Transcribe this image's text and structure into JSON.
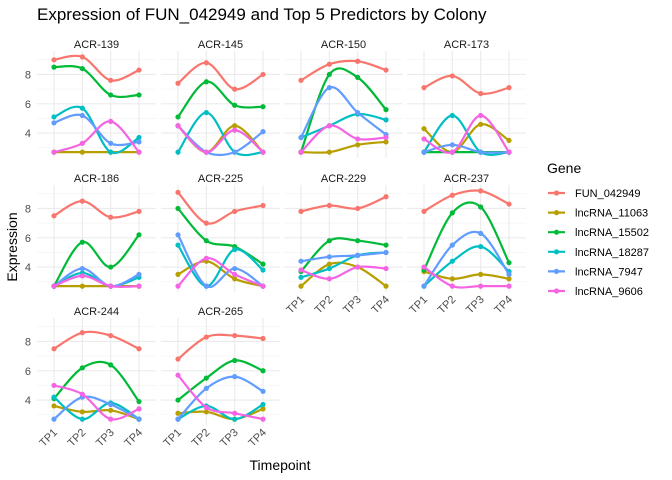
{
  "chart_data": {
    "type": "line",
    "title": "Expression of FUN_042949 and Top 5 Predictors by Colony",
    "xlabel": "Timepoint",
    "ylabel": "Expression",
    "categories": [
      "TP1",
      "TP2",
      "TP3",
      "TP4"
    ],
    "y_ticks": [
      4,
      6,
      8
    ],
    "ylim": [
      2.3,
      9.6
    ],
    "grid": true,
    "legend": {
      "title": "Gene",
      "placement": "right"
    },
    "series_names": [
      "FUN_042949",
      "lncRNA_11063",
      "lncRNA_15502",
      "lncRNA_18287",
      "lncRNA_7947",
      "lncRNA_9606"
    ],
    "colors": {
      "FUN_042949": "#F8766D",
      "lncRNA_11063": "#B79F00",
      "lncRNA_15502": "#00BA38",
      "lncRNA_18287": "#00BFC4",
      "lncRNA_7947": "#619CFF",
      "lncRNA_9606": "#F564E3"
    },
    "panels": [
      {
        "colony": "ACR-139",
        "series": {
          "FUN_042949": [
            9.0,
            9.2,
            7.6,
            8.3
          ],
          "lncRNA_11063": [
            2.7,
            2.7,
            2.7,
            2.7
          ],
          "lncRNA_15502": [
            8.5,
            8.4,
            6.6,
            6.6
          ],
          "lncRNA_18287": [
            5.1,
            5.7,
            2.7,
            3.7
          ],
          "lncRNA_7947": [
            4.7,
            5.2,
            3.3,
            3.4
          ],
          "lncRNA_9606": [
            2.7,
            3.3,
            4.8,
            2.7
          ]
        }
      },
      {
        "colony": "ACR-145",
        "series": {
          "FUN_042949": [
            7.4,
            8.8,
            7.0,
            8.0
          ],
          "lncRNA_11063": [
            4.5,
            2.7,
            4.5,
            2.7
          ],
          "lncRNA_15502": [
            5.1,
            7.5,
            5.9,
            5.8
          ],
          "lncRNA_18287": [
            2.7,
            5.4,
            2.7,
            2.7
          ],
          "lncRNA_7947": [
            4.5,
            2.7,
            2.7,
            4.1
          ],
          "lncRNA_9606": [
            4.5,
            2.7,
            4.2,
            2.7
          ]
        }
      },
      {
        "colony": "ACR-150",
        "series": {
          "FUN_042949": [
            7.6,
            8.7,
            8.9,
            8.3
          ],
          "lncRNA_11063": [
            2.7,
            2.7,
            3.2,
            3.4
          ],
          "lncRNA_15502": [
            2.7,
            8.0,
            7.8,
            5.6
          ],
          "lncRNA_18287": [
            3.7,
            4.5,
            5.3,
            4.9
          ],
          "lncRNA_7947": [
            3.7,
            7.1,
            5.4,
            3.9
          ],
          "lncRNA_9606": [
            2.7,
            4.5,
            3.6,
            3.7
          ]
        }
      },
      {
        "colony": "ACR-173",
        "series": {
          "FUN_042949": [
            7.1,
            7.9,
            6.7,
            7.1
          ],
          "lncRNA_11063": [
            4.3,
            2.7,
            4.6,
            3.5
          ],
          "lncRNA_15502": [
            2.7,
            2.7,
            2.7,
            2.7
          ],
          "lncRNA_18287": [
            2.7,
            5.2,
            2.7,
            2.7
          ],
          "lncRNA_7947": [
            2.7,
            3.2,
            2.7,
            2.7
          ],
          "lncRNA_9606": [
            3.6,
            2.7,
            5.2,
            2.7
          ]
        }
      },
      {
        "colony": "ACR-186",
        "series": {
          "FUN_042949": [
            7.5,
            8.5,
            7.4,
            7.8
          ],
          "lncRNA_11063": [
            2.7,
            2.7,
            2.7,
            2.7
          ],
          "lncRNA_15502": [
            2.7,
            5.7,
            4.0,
            6.2
          ],
          "lncRNA_18287": [
            2.7,
            3.6,
            2.7,
            3.3
          ],
          "lncRNA_7947": [
            2.7,
            3.9,
            2.7,
            3.5
          ],
          "lncRNA_9606": [
            2.7,
            3.4,
            2.7,
            2.7
          ]
        }
      },
      {
        "colony": "ACR-225",
        "series": {
          "FUN_042949": [
            9.1,
            7.0,
            7.8,
            8.2
          ],
          "lncRNA_11063": [
            3.5,
            4.4,
            3.2,
            2.7
          ],
          "lncRNA_15502": [
            8.0,
            5.8,
            5.4,
            4.2
          ],
          "lncRNA_18287": [
            5.5,
            2.7,
            5.2,
            3.8
          ],
          "lncRNA_7947": [
            6.2,
            2.7,
            3.9,
            2.7
          ],
          "lncRNA_9606": [
            2.7,
            4.6,
            3.5,
            2.7
          ]
        }
      },
      {
        "colony": "ACR-229",
        "series": {
          "FUN_042949": [
            7.8,
            8.2,
            8.0,
            8.8
          ],
          "lncRNA_11063": [
            2.7,
            4.2,
            4.0,
            2.7
          ],
          "lncRNA_15502": [
            3.7,
            5.8,
            5.8,
            5.5
          ],
          "lncRNA_18287": [
            3.3,
            3.9,
            4.8,
            5.0
          ],
          "lncRNA_7947": [
            4.4,
            4.7,
            4.8,
            5.0
          ],
          "lncRNA_9606": [
            3.8,
            3.2,
            4.0,
            3.9
          ]
        }
      },
      {
        "colony": "ACR-237",
        "series": {
          "FUN_042949": [
            7.8,
            8.9,
            9.2,
            8.3
          ],
          "lncRNA_11063": [
            3.7,
            3.2,
            3.5,
            3.2
          ],
          "lncRNA_15502": [
            3.8,
            7.7,
            8.1,
            4.3
          ],
          "lncRNA_18287": [
            2.7,
            4.4,
            5.4,
            3.7
          ],
          "lncRNA_7947": [
            2.7,
            5.5,
            6.3,
            3.5
          ],
          "lncRNA_9606": [
            4.0,
            2.7,
            2.7,
            2.7
          ]
        }
      },
      {
        "colony": "ACR-244",
        "series": {
          "FUN_042949": [
            7.5,
            8.6,
            8.4,
            7.5
          ],
          "lncRNA_11063": [
            3.6,
            3.2,
            3.3,
            2.7
          ],
          "lncRNA_15502": [
            4.1,
            6.2,
            6.4,
            3.9
          ],
          "lncRNA_18287": [
            4.2,
            2.7,
            3.8,
            2.7
          ],
          "lncRNA_7947": [
            2.7,
            4.2,
            3.7,
            2.7
          ],
          "lncRNA_9606": [
            5.0,
            4.4,
            2.7,
            3.4
          ]
        }
      },
      {
        "colony": "ACR-265",
        "series": {
          "FUN_042949": [
            6.8,
            8.3,
            8.4,
            8.2
          ],
          "lncRNA_11063": [
            3.1,
            3.2,
            2.7,
            3.4
          ],
          "lncRNA_15502": [
            4.0,
            5.5,
            6.7,
            6.0
          ],
          "lncRNA_18287": [
            2.7,
            3.6,
            2.7,
            3.7
          ],
          "lncRNA_7947": [
            2.7,
            4.8,
            5.6,
            4.6
          ],
          "lncRNA_9606": [
            5.7,
            3.5,
            3.1,
            2.7
          ]
        }
      }
    ]
  }
}
